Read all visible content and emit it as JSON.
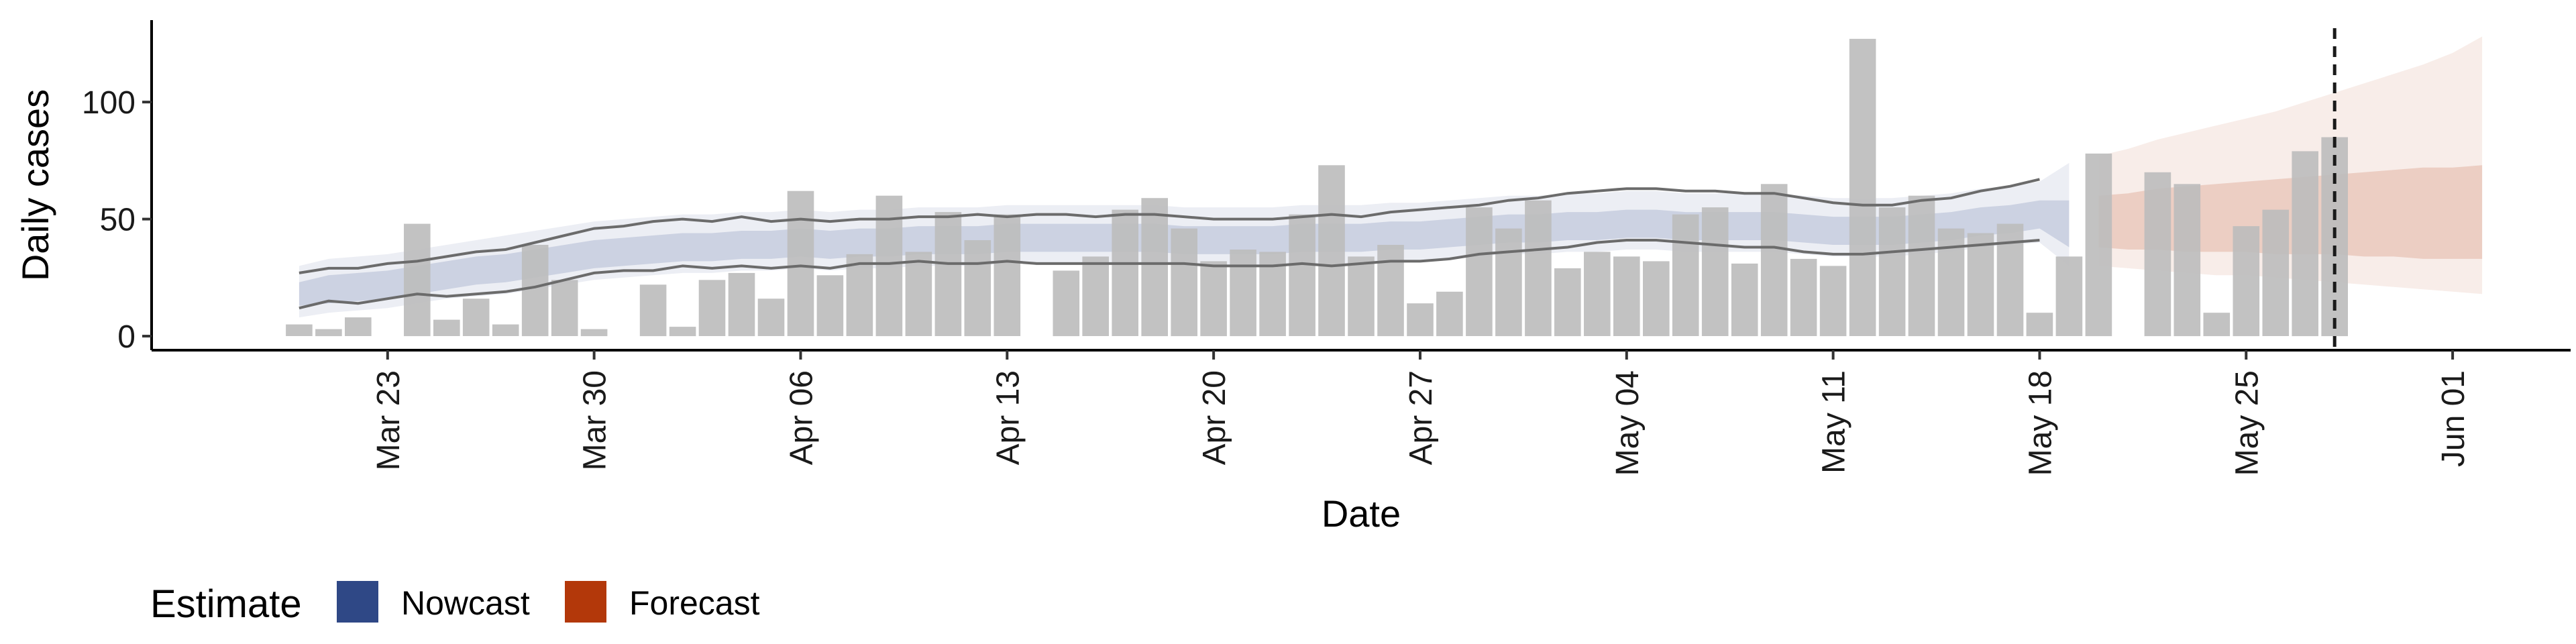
{
  "chart_data": {
    "type": "bar",
    "title": "",
    "xlabel": "Date",
    "ylabel": "Daily cases",
    "x_start": "2020-03-20",
    "ylim": [
      -6,
      135
    ],
    "yticks": [
      0,
      50,
      100
    ],
    "xticks": [
      {
        "date": "2020-03-23",
        "label": "Mar 23"
      },
      {
        "date": "2020-03-30",
        "label": "Mar 30"
      },
      {
        "date": "2020-04-06",
        "label": "Apr 06"
      },
      {
        "date": "2020-04-13",
        "label": "Apr 13"
      },
      {
        "date": "2020-04-20",
        "label": "Apr 20"
      },
      {
        "date": "2020-04-27",
        "label": "Apr 27"
      },
      {
        "date": "2020-05-04",
        "label": "May 04"
      },
      {
        "date": "2020-05-11",
        "label": "May 11"
      },
      {
        "date": "2020-05-18",
        "label": "May 18"
      },
      {
        "date": "2020-05-25",
        "label": "May 25"
      },
      {
        "date": "2020-06-01",
        "label": "Jun 01"
      }
    ],
    "xlim": [
      "2020-03-15",
      "2020-06-05"
    ],
    "reported_cases": [
      5,
      3,
      8,
      0,
      48,
      7,
      16,
      5,
      39,
      24,
      3,
      0,
      22,
      4,
      24,
      27,
      16,
      62,
      26,
      35,
      60,
      36,
      53,
      41,
      52,
      0,
      28,
      34,
      54,
      59,
      46,
      32,
      37,
      36,
      52,
      73,
      34,
      39,
      14,
      19,
      55,
      46,
      58,
      29,
      36,
      34,
      32,
      52,
      55,
      31,
      65,
      33,
      30,
      127,
      55,
      60,
      46,
      44,
      48,
      10,
      34,
      78,
      0,
      70,
      65,
      10,
      47,
      54,
      79,
      85
    ],
    "forecast_start": "2020-05-20",
    "estimate_end": "2020-06-02",
    "report_date": "2020-05-28",
    "estimate_median": [
      18,
      20,
      21,
      22,
      24,
      26,
      28,
      29,
      31,
      33,
      35,
      36,
      37,
      38,
      38,
      39,
      39,
      40,
      39,
      40,
      40,
      41,
      41,
      41,
      42,
      42,
      42,
      42,
      42,
      42,
      41,
      41,
      41,
      41,
      42,
      42,
      42,
      43,
      43,
      44,
      45,
      46,
      46,
      47,
      47,
      48,
      48,
      47,
      47,
      47,
      47,
      46,
      45,
      45,
      45,
      46,
      47,
      49,
      50,
      52,
      48,
      49,
      49,
      50,
      49,
      50,
      51,
      51,
      51,
      52,
      51,
      52,
      51,
      52,
      51
    ],
    "estimate_inner_lower": [
      13,
      14,
      15,
      16,
      18,
      20,
      22,
      23,
      25,
      27,
      29,
      30,
      31,
      32,
      32,
      33,
      33,
      34,
      33,
      34,
      34,
      35,
      35,
      35,
      36,
      36,
      36,
      36,
      36,
      36,
      35,
      35,
      35,
      35,
      36,
      36,
      36,
      37,
      37,
      38,
      39,
      40,
      40,
      41,
      41,
      42,
      42,
      41,
      41,
      41,
      41,
      40,
      39,
      39,
      39,
      40,
      41,
      43,
      44,
      46,
      38,
      38,
      37,
      37,
      36,
      36,
      36,
      35,
      35,
      35,
      34,
      34,
      33,
      33,
      33
    ],
    "estimate_inner_upper": [
      23,
      26,
      27,
      28,
      30,
      32,
      34,
      35,
      37,
      39,
      41,
      42,
      43,
      44,
      44,
      45,
      45,
      46,
      45,
      46,
      46,
      47,
      47,
      47,
      48,
      48,
      48,
      48,
      48,
      48,
      47,
      47,
      47,
      47,
      48,
      48,
      48,
      49,
      49,
      50,
      51,
      52,
      52,
      53,
      53,
      54,
      54,
      53,
      53,
      53,
      53,
      52,
      51,
      51,
      51,
      52,
      53,
      55,
      56,
      58,
      58,
      60,
      61,
      63,
      64,
      65,
      66,
      67,
      68,
      69,
      70,
      71,
      72,
      72,
      73
    ],
    "estimate_outer_lower": [
      8,
      10,
      11,
      12,
      14,
      16,
      17,
      18,
      20,
      22,
      24,
      25,
      26,
      27,
      27,
      28,
      28,
      29,
      28,
      29,
      29,
      30,
      30,
      30,
      31,
      31,
      31,
      31,
      31,
      31,
      30,
      30,
      30,
      30,
      31,
      31,
      31,
      32,
      32,
      33,
      34,
      35,
      35,
      36,
      36,
      37,
      37,
      36,
      36,
      36,
      36,
      35,
      34,
      34,
      34,
      35,
      36,
      38,
      39,
      40,
      30,
      30,
      29,
      28,
      27,
      26,
      26,
      25,
      24,
      23,
      22,
      21,
      20,
      19,
      18
    ],
    "estimate_outer_upper": [
      30,
      33,
      34,
      35,
      37,
      39,
      41,
      43,
      45,
      47,
      49,
      50,
      51,
      52,
      52,
      53,
      53,
      54,
      53,
      54,
      54,
      55,
      55,
      55,
      56,
      56,
      56,
      56,
      56,
      56,
      55,
      55,
      55,
      55,
      56,
      56,
      56,
      57,
      57,
      58,
      59,
      60,
      60,
      61,
      61,
      62,
      62,
      61,
      61,
      61,
      61,
      60,
      59,
      59,
      59,
      60,
      61,
      63,
      64,
      66,
      74,
      77,
      80,
      84,
      87,
      90,
      93,
      96,
      100,
      104,
      108,
      112,
      116,
      121,
      128
    ],
    "line_upper": [
      27,
      29,
      29,
      31,
      32,
      34,
      36,
      37,
      40,
      43,
      46,
      47,
      49,
      50,
      49,
      51,
      49,
      50,
      49,
      50,
      50,
      51,
      51,
      52,
      51,
      52,
      52,
      51,
      52,
      52,
      51,
      50,
      50,
      50,
      51,
      52,
      51,
      53,
      54,
      55,
      56,
      58,
      59,
      61,
      62,
      63,
      63,
      62,
      62,
      61,
      61,
      59,
      57,
      56,
      56,
      58,
      59,
      62,
      64,
      67
    ],
    "line_lower": [
      12,
      15,
      14,
      16,
      18,
      17,
      18,
      19,
      21,
      24,
      27,
      28,
      28,
      30,
      29,
      30,
      29,
      30,
      29,
      31,
      31,
      32,
      31,
      31,
      32,
      31,
      31,
      31,
      31,
      31,
      31,
      30,
      30,
      30,
      31,
      30,
      31,
      32,
      32,
      33,
      35,
      36,
      37,
      38,
      40,
      41,
      41,
      40,
      39,
      38,
      38,
      36,
      35,
      35,
      36,
      37,
      38,
      39,
      40,
      41
    ],
    "legend": {
      "title": "Estimate",
      "position": "bottom-left",
      "entries": [
        {
          "label": "Nowcast",
          "color": "#2f4886"
        },
        {
          "label": "Forecast",
          "color": "#b3380a"
        }
      ]
    },
    "colors": {
      "bars": "#bdbdbd",
      "nowcast": "#2f4886",
      "forecast": "#b3380a",
      "ribbon_lines": "#6b6b6b",
      "report_line": "#1a1a1a"
    }
  }
}
